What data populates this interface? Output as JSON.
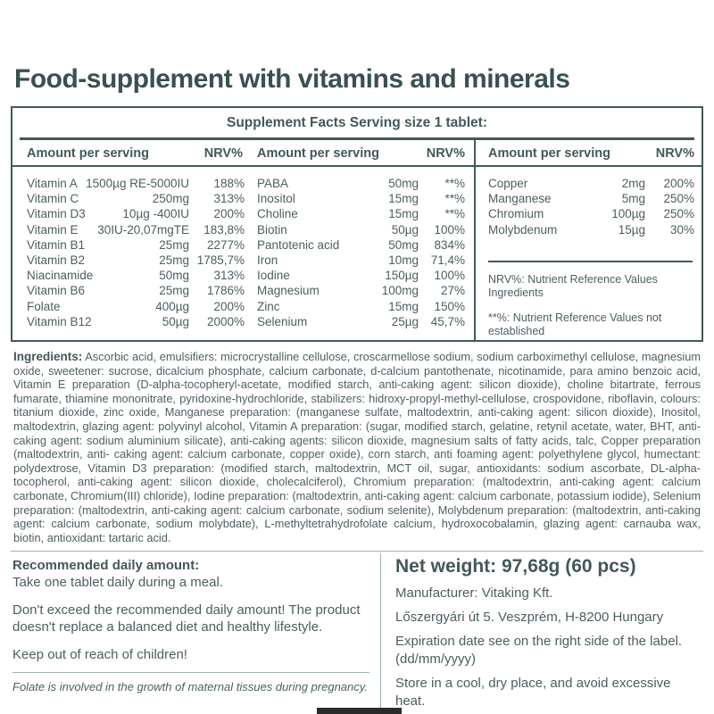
{
  "page": {
    "title": "Food-supplement with vitamins and minerals"
  },
  "supplement_facts": {
    "heading": "Supplement Facts Serving size 1 tablet:",
    "amount_header": "Amount per serving",
    "nrv_header": "NRV%",
    "columns": [
      {
        "rows": [
          {
            "name": "Vitamin A",
            "amount": "1500µg RE-5000IU",
            "nrv": "188%"
          },
          {
            "name": "Vitamin C",
            "amount": "250mg",
            "nrv": "313%"
          },
          {
            "name": "Vitamin D3",
            "amount": "10µg -400IU",
            "nrv": "200%"
          },
          {
            "name": "Vitamin E",
            "amount": "30IU-20,07mgTE",
            "nrv": "183,8%"
          },
          {
            "name": "Vitamin B1",
            "amount": "25mg",
            "nrv": "2277%"
          },
          {
            "name": "Vitamin B2",
            "amount": "25mg",
            "nrv": "1785,7%"
          },
          {
            "name": "Niacinamide",
            "amount": "50mg",
            "nrv": "313%"
          },
          {
            "name": "Vitamin B6",
            "amount": "25mg",
            "nrv": "1786%"
          },
          {
            "name": "Folate",
            "amount": "400µg",
            "nrv": "200%"
          },
          {
            "name": "Vitamin B12",
            "amount": "50µg",
            "nrv": "2000%"
          }
        ]
      },
      {
        "rows": [
          {
            "name": "PABA",
            "amount": "50mg",
            "nrv": "**%"
          },
          {
            "name": "Inositol",
            "amount": "15mg",
            "nrv": "**%"
          },
          {
            "name": "Choline",
            "amount": "15mg",
            "nrv": "**%"
          },
          {
            "name": "Biotin",
            "amount": "50µg",
            "nrv": "100%"
          },
          {
            "name": "Pantotenic acid",
            "amount": "50mg",
            "nrv": "834%"
          },
          {
            "name": "Iron",
            "amount": "10mg",
            "nrv": "71,4%"
          },
          {
            "name": "Iodine",
            "amount": "150µg",
            "nrv": "100%"
          },
          {
            "name": "Magnesium",
            "amount": "100mg",
            "nrv": "27%"
          },
          {
            "name": "Zinc",
            "amount": "15mg",
            "nrv": "150%"
          },
          {
            "name": "Selenium",
            "amount": "25µg",
            "nrv": "45,7%"
          }
        ]
      },
      {
        "rows": [
          {
            "name": "Copper",
            "amount": "2mg",
            "nrv": "200%"
          },
          {
            "name": "Manganese",
            "amount": "5mg",
            "nrv": "250%"
          },
          {
            "name": "Chromium",
            "amount": "100µg",
            "nrv": "250%"
          },
          {
            "name": "Molybdenum",
            "amount": "15µg",
            "nrv": "30%"
          }
        ],
        "notes": [
          "NRV%: Nutrient Reference Values Ingredients",
          "**%: Nutrient Reference Values not established"
        ]
      }
    ]
  },
  "ingredients": {
    "label": "Ingredients:",
    "text": " Ascorbic acid, emulsifiers: microcrystalline cellulose, croscarmellose sodium, sodium carboximethyl cellulose, magnesium oxide, sweetener: sucrose, dicalcium phosphate, calcium carbonate, d-calcium pantothenate, nicotinamide, para amino benzoic acid, Vitamin E preparation (D-alpha-tocopheryl-acetate, modified starch, anti-caking agent: silicon dioxide), choline bitartrate, ferrous fumarate, thiamine mononitrate, pyridoxine-hydrochloride, stabilizers: hidroxy-propyl-methyl-cellulose, crospovidone, riboflavin, colours: titanium dioxide, zinc oxide, Manganese preparation: (manganese sulfate, maltodextrin, anti-caking agent: silicon dioxide), Inositol, maltodextrin, glazing agent: polyvinyl alcohol, Vitamin A preparation: (sugar, modified starch, gelatine, retynil acetate, water, BHT, anti-caking agent: sodium aluminium silicate), anti-caking agents: silicon dioxide, magnesium salts of fatty acids, talc, Copper preparation (maltodextrin, anti- caking agent: calcium carbonate, copper oxide), corn starch, anti foaming agent: polyethylene glycol, humectant: polydextrose, Vitamin D3 preparation: (modified starch, maltodextrin, MCT oil, sugar, antioxidants: sodium ascorbate, DL-alpha-tocopherol, anti-caking agent: silicon dioxide, cholecalciferol), Chromium preparation: (maltodextrin, anti-caking agent: calcium carbonate, Chromium(III) chloride), Iodine preparation: (maltodextrin, anti-caking agent: calcium carbonate, potassium iodide), Selenium preparation: (maltodextrin, anti-caking agent: calcium carbonate, sodium selenite), Molybdenum preparation: (maltodextrin, anti-caking agent: calcium carbonate, sodium molybdate), L-methyltetrahydrofolate calcium, hydroxocobalamin, glazing agent: carnauba wax, biotin, antioxidant: tartaric acid."
  },
  "usage": {
    "heading": "Recommended daily amount:",
    "dose": "Take one tablet daily during a meal.",
    "warning": "Don't exceed the recommended daily amount! The product doesn't replace a balanced diet and healthy lifestyle.",
    "children": "Keep out of reach of children!",
    "folate_note": "Folate is involved in the growth of maternal tissues during pregnancy."
  },
  "product_info": {
    "net_weight": "Net weight: 97,68g (60 pcs)",
    "manufacturer": "Manufacturer: Vitaking Kft.",
    "address": "Lőszergyári út 5. Veszprém, H-8200 Hungary",
    "expiration": "Expiration date see on the right side of the label.",
    "date_format": "(dd/mm/yyyy)",
    "storage": "Store in a cool, dry place, and avoid excessive heat."
  },
  "colors": {
    "text": "#4b5e60",
    "title": "#3a5052",
    "table_line": "#42585a",
    "light_line": "#9fb0b0",
    "barcode": "#2a2a2a"
  }
}
